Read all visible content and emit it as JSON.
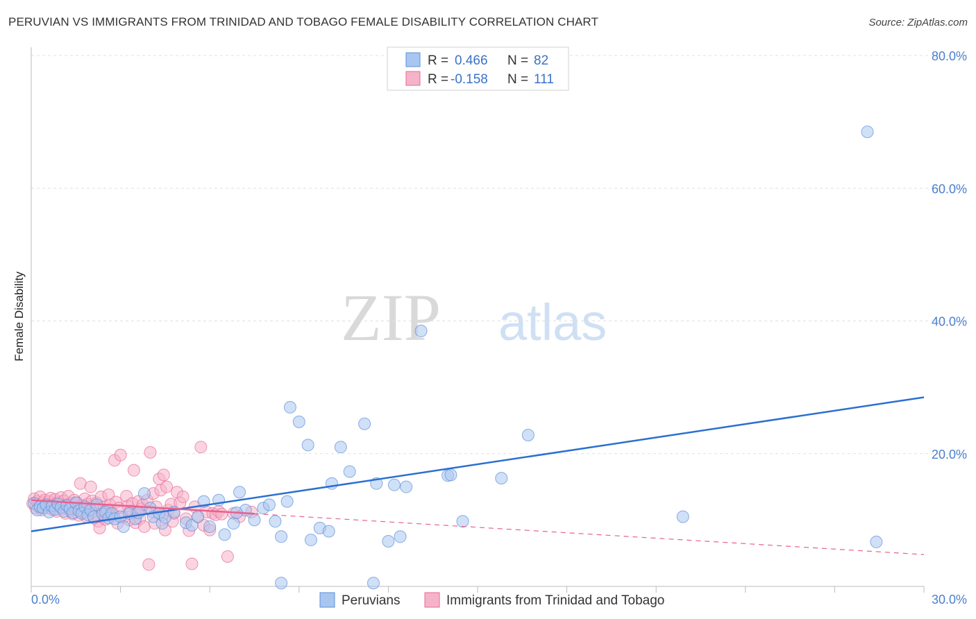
{
  "header": {
    "title": "PERUVIAN VS IMMIGRANTS FROM TRINIDAD AND TOBAGO FEMALE DISABILITY CORRELATION CHART",
    "source": "Source: ZipAtlas.com"
  },
  "watermark": {
    "zip": "ZIP",
    "atlas": "atlas"
  },
  "colors": {
    "blue": "#5b8fd9",
    "blue_fill": "#a9c6f0",
    "blue_line": "#2a6fd1",
    "pink": "#e86a98",
    "pink_fill": "#f5b3c9",
    "pink_line": "#e8608f",
    "axis_label": "#4a7fd0",
    "grid": "#e0e0e0"
  },
  "legend": {
    "r_label": "R =",
    "n_label": "N =",
    "series": [
      {
        "r": "0.466",
        "n": "82"
      },
      {
        "r": "-0.158",
        "n": "111"
      }
    ]
  },
  "bottom_legend": [
    "Peruvians",
    "Immigrants from Trinidad and Tobago"
  ],
  "chart_data": {
    "type": "scatter",
    "title": "PERUVIAN VS IMMIGRANTS FROM TRINIDAD AND TOBAGO FEMALE DISABILITY CORRELATION CHART",
    "xlabel": "",
    "ylabel": "Female Disability",
    "xlim": [
      0,
      30
    ],
    "ylim": [
      0,
      82
    ],
    "x_tick_labels": [
      "0.0%",
      "30.0%"
    ],
    "y_ticks": [
      20,
      40,
      60,
      80
    ],
    "y_tick_labels": [
      "20.0%",
      "40.0%",
      "60.0%",
      "80.0%"
    ],
    "legend_position": "top-center",
    "series": [
      {
        "name": "Peruvians",
        "r": 0.466,
        "n": 82,
        "trend": {
          "x": [
            0,
            30
          ],
          "y": [
            8.3,
            28.5
          ],
          "style": "solid"
        },
        "points": [
          [
            0.1,
            12.5
          ],
          [
            0.2,
            11.5
          ],
          [
            0.3,
            12
          ],
          [
            0.4,
            11.8
          ],
          [
            0.5,
            12.3
          ],
          [
            0.6,
            11.2
          ],
          [
            0.7,
            12.1
          ],
          [
            0.8,
            11.6
          ],
          [
            0.9,
            12.4
          ],
          [
            1.0,
            11.9
          ],
          [
            1.1,
            11.3
          ],
          [
            1.2,
            12.2
          ],
          [
            1.3,
            11.7
          ],
          [
            1.4,
            11.1
          ],
          [
            1.5,
            12.6
          ],
          [
            1.6,
            11.4
          ],
          [
            1.7,
            11.0
          ],
          [
            1.8,
            12.0
          ],
          [
            1.9,
            10.8
          ],
          [
            2.0,
            11.5
          ],
          [
            2.1,
            10.5
          ],
          [
            2.2,
            12.3
          ],
          [
            2.4,
            10.9
          ],
          [
            2.5,
            11.2
          ],
          [
            2.6,
            10.3
          ],
          [
            2.7,
            11.0
          ],
          [
            2.8,
            10.2
          ],
          [
            3.0,
            10.5
          ],
          [
            3.1,
            9.0
          ],
          [
            3.3,
            11.0
          ],
          [
            3.5,
            10.2
          ],
          [
            3.6,
            11.1
          ],
          [
            3.8,
            14.0
          ],
          [
            4.0,
            11.8
          ],
          [
            4.1,
            10.5
          ],
          [
            4.3,
            11.0
          ],
          [
            4.4,
            9.5
          ],
          [
            4.5,
            10.4
          ],
          [
            4.8,
            11.2
          ],
          [
            5.2,
            9.6
          ],
          [
            5.4,
            9.2
          ],
          [
            5.6,
            10.5
          ],
          [
            5.8,
            12.8
          ],
          [
            6.0,
            9.0
          ],
          [
            6.3,
            13.0
          ],
          [
            6.5,
            7.8
          ],
          [
            6.8,
            9.5
          ],
          [
            7.0,
            14.2
          ],
          [
            7.2,
            11.5
          ],
          [
            7.5,
            10.0
          ],
          [
            7.8,
            11.8
          ],
          [
            8.0,
            12.3
          ],
          [
            8.2,
            9.8
          ],
          [
            8.4,
            7.5
          ],
          [
            8.6,
            12.8
          ],
          [
            8.7,
            27.0
          ],
          [
            9.0,
            24.8
          ],
          [
            9.3,
            21.3
          ],
          [
            9.4,
            7.0
          ],
          [
            9.7,
            8.8
          ],
          [
            10.0,
            8.3
          ],
          [
            10.1,
            15.5
          ],
          [
            10.4,
            21.0
          ],
          [
            10.7,
            17.3
          ],
          [
            11.2,
            24.5
          ],
          [
            11.5,
            0.5
          ],
          [
            11.6,
            15.5
          ],
          [
            12.0,
            6.8
          ],
          [
            12.2,
            15.3
          ],
          [
            12.4,
            7.5
          ],
          [
            12.6,
            15.0
          ],
          [
            14.0,
            16.7
          ],
          [
            14.1,
            16.8
          ],
          [
            14.5,
            9.8
          ],
          [
            15.8,
            16.3
          ],
          [
            16.7,
            22.8
          ],
          [
            21.9,
            10.5
          ],
          [
            28.1,
            68.5
          ],
          [
            28.4,
            6.7
          ],
          [
            13.1,
            38.5
          ],
          [
            8.4,
            0.5
          ],
          [
            6.9,
            11.1
          ]
        ]
      },
      {
        "name": "Immigrants from Trinidad and Tobago",
        "r": -0.158,
        "n": 111,
        "trend": {
          "x": [
            0,
            30
          ],
          "y": [
            13.0,
            4.8
          ],
          "style": "solid-then-dashed",
          "solid_until_x": 7.5
        },
        "points": [
          [
            0.05,
            12.5
          ],
          [
            0.1,
            13.2
          ],
          [
            0.15,
            11.8
          ],
          [
            0.2,
            12.8
          ],
          [
            0.25,
            12.0
          ],
          [
            0.3,
            13.5
          ],
          [
            0.35,
            11.5
          ],
          [
            0.4,
            12.6
          ],
          [
            0.45,
            13.0
          ],
          [
            0.5,
            12.2
          ],
          [
            0.55,
            11.9
          ],
          [
            0.6,
            12.8
          ],
          [
            0.65,
            13.3
          ],
          [
            0.7,
            11.6
          ],
          [
            0.75,
            12.4
          ],
          [
            0.8,
            13.1
          ],
          [
            0.85,
            11.3
          ],
          [
            0.9,
            12.7
          ],
          [
            0.95,
            12.1
          ],
          [
            1.0,
            13.4
          ],
          [
            1.05,
            11.7
          ],
          [
            1.1,
            12.9
          ],
          [
            1.15,
            11.0
          ],
          [
            1.2,
            12.3
          ],
          [
            1.25,
            13.6
          ],
          [
            1.3,
            11.4
          ],
          [
            1.35,
            12.5
          ],
          [
            1.4,
            10.9
          ],
          [
            1.45,
            13.0
          ],
          [
            1.5,
            11.8
          ],
          [
            1.55,
            12.6
          ],
          [
            1.6,
            10.7
          ],
          [
            1.65,
            15.5
          ],
          [
            1.7,
            12.2
          ],
          [
            1.75,
            11.1
          ],
          [
            1.8,
            13.2
          ],
          [
            1.85,
            10.5
          ],
          [
            1.9,
            12.4
          ],
          [
            1.95,
            11.6
          ],
          [
            2.0,
            15.0
          ],
          [
            2.05,
            12.9
          ],
          [
            2.1,
            10.3
          ],
          [
            2.15,
            11.9
          ],
          [
            2.2,
            12.6
          ],
          [
            2.25,
            9.8
          ],
          [
            2.3,
            8.8
          ],
          [
            2.35,
            13.5
          ],
          [
            2.4,
            11.2
          ],
          [
            2.45,
            12.0
          ],
          [
            2.5,
            10.1
          ],
          [
            2.55,
            11.5
          ],
          [
            2.6,
            13.8
          ],
          [
            2.65,
            12.3
          ],
          [
            2.7,
            10.6
          ],
          [
            2.75,
            11.0
          ],
          [
            2.8,
            19.0
          ],
          [
            2.85,
            12.7
          ],
          [
            2.9,
            9.5
          ],
          [
            2.95,
            11.8
          ],
          [
            3.0,
            19.8
          ],
          [
            3.1,
            10.4
          ],
          [
            3.2,
            13.6
          ],
          [
            3.25,
            12.1
          ],
          [
            3.3,
            10.0
          ],
          [
            3.35,
            11.4
          ],
          [
            3.4,
            12.5
          ],
          [
            3.45,
            17.5
          ],
          [
            3.5,
            9.6
          ],
          [
            3.55,
            11.1
          ],
          [
            3.6,
            12.8
          ],
          [
            3.65,
            10.2
          ],
          [
            3.7,
            11.7
          ],
          [
            3.75,
            12.3
          ],
          [
            3.8,
            9.0
          ],
          [
            3.9,
            13.0
          ],
          [
            3.95,
            3.3
          ],
          [
            4.0,
            20.2
          ],
          [
            4.05,
            11.3
          ],
          [
            4.1,
            14.0
          ],
          [
            4.15,
            9.5
          ],
          [
            4.2,
            12.0
          ],
          [
            4.3,
            16.2
          ],
          [
            4.35,
            14.5
          ],
          [
            4.4,
            10.8
          ],
          [
            4.45,
            16.8
          ],
          [
            4.5,
            8.5
          ],
          [
            4.55,
            15.0
          ],
          [
            4.6,
            11.5
          ],
          [
            4.7,
            12.4
          ],
          [
            4.75,
            9.8
          ],
          [
            4.8,
            11.0
          ],
          [
            4.9,
            14.2
          ],
          [
            5.0,
            12.6
          ],
          [
            5.1,
            13.5
          ],
          [
            5.2,
            10.2
          ],
          [
            5.3,
            8.4
          ],
          [
            5.4,
            3.4
          ],
          [
            5.5,
            12.0
          ],
          [
            5.6,
            10.5
          ],
          [
            5.7,
            21.0
          ],
          [
            5.8,
            9.2
          ],
          [
            5.9,
            11.2
          ],
          [
            6.0,
            8.5
          ],
          [
            6.1,
            11.0
          ],
          [
            6.2,
            10.8
          ],
          [
            6.3,
            11.3
          ],
          [
            6.4,
            10.9
          ],
          [
            6.6,
            4.5
          ],
          [
            6.8,
            11.0
          ],
          [
            7.0,
            10.5
          ],
          [
            7.4,
            11.2
          ]
        ]
      }
    ]
  }
}
